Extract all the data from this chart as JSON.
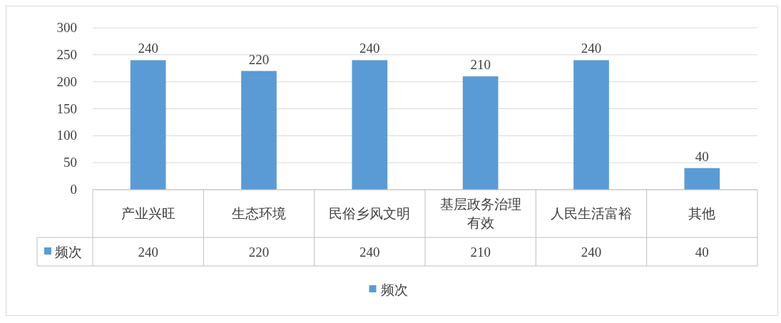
{
  "chart_data": {
    "type": "bar",
    "categories": [
      "产业兴旺",
      "生态环境",
      "民俗乡风文明",
      "基层政务治理有效",
      "人民生活富裕",
      "其他"
    ],
    "series": [
      {
        "name": "频次",
        "color": "#5b9bd5",
        "values": [
          240,
          220,
          240,
          210,
          240,
          40
        ],
        "value_labels": [
          "240",
          "220",
          "240",
          "210",
          "240",
          "40"
        ]
      }
    ],
    "ylim": [
      0,
      300
    ],
    "yticks": [
      0,
      50,
      100,
      150,
      200,
      250,
      300
    ],
    "grid": "y",
    "data_labels": true,
    "legend": "bottom"
  }
}
